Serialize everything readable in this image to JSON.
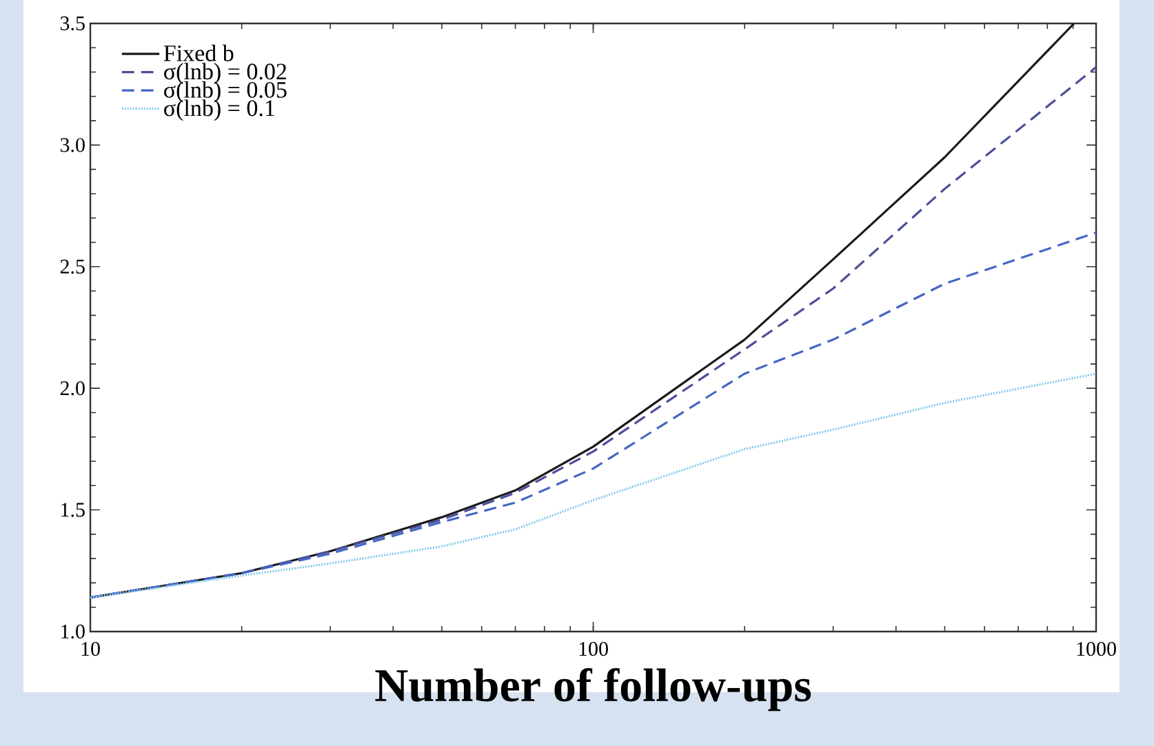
{
  "chart_data": {
    "type": "line",
    "xlabel": "Number of follow-ups",
    "log": "x",
    "xlim": [
      10,
      1000
    ],
    "ylim": [
      1,
      3.5
    ],
    "xticks": [
      10,
      100,
      1000
    ],
    "yticks": [
      {
        "value": 1,
        "label": "1.0"
      },
      {
        "value": 1.5,
        "label": "1.5"
      },
      {
        "value": 2,
        "label": "2.0"
      },
      {
        "value": 2.5,
        "label": "2.5"
      },
      {
        "value": 3,
        "label": "3.0"
      },
      {
        "value": 3.5,
        "label": "3.5"
      }
    ],
    "legend": "top left",
    "grid": false,
    "series": [
      {
        "name": "Fixed b",
        "color": "#1a1a1a",
        "line_style": "solid",
        "x": [
          10,
          20,
          30,
          50,
          70,
          100,
          200,
          300,
          500,
          904
        ],
        "values": [
          1.14,
          1.24,
          1.33,
          1.47,
          1.58,
          1.76,
          2.2,
          2.53,
          2.95,
          3.5
        ]
      },
      {
        "name": "σ(lnb) = 0.02",
        "color": "#4a4f9a",
        "line_style": "dashed",
        "x": [
          10,
          20,
          30,
          50,
          70,
          100,
          200,
          300,
          500,
          1000
        ],
        "values": [
          1.14,
          1.24,
          1.33,
          1.46,
          1.57,
          1.74,
          2.16,
          2.41,
          2.82,
          3.32
        ]
      },
      {
        "name": "σ(lnb) = 0.05",
        "color": "#4466c4",
        "line_style": "dashed",
        "x": [
          10,
          20,
          30,
          50,
          70,
          100,
          200,
          300,
          500,
          1000
        ],
        "values": [
          1.14,
          1.24,
          1.32,
          1.45,
          1.53,
          1.67,
          2.06,
          2.2,
          2.43,
          2.64
        ]
      },
      {
        "name": "σ(lnb) = 0.1",
        "color": "#80c8ec",
        "line_style": "dotted",
        "x": [
          10,
          20,
          30,
          50,
          70,
          100,
          200,
          300,
          500,
          1000
        ],
        "values": [
          1.14,
          1.23,
          1.28,
          1.35,
          1.42,
          1.54,
          1.75,
          1.83,
          1.94,
          2.06
        ]
      }
    ]
  }
}
